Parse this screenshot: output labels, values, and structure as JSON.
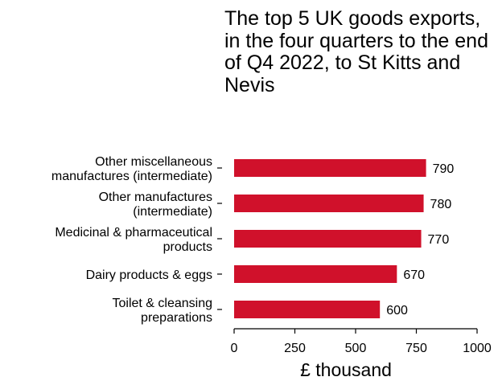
{
  "chart_data": {
    "type": "bar",
    "orientation": "horizontal",
    "title": "The top 5 UK goods exports, in the four quarters to the end of Q4 2022, to St Kitts and Nevis",
    "categories": [
      [
        "Other miscellaneous",
        "manufactures (intermediate)"
      ],
      [
        "Other manufactures",
        "(intermediate)"
      ],
      [
        "Medicinal & pharmaceutical",
        "products"
      ],
      [
        "Dairy products & eggs"
      ],
      [
        "Toilet & cleansing",
        "preparations"
      ]
    ],
    "values": [
      790,
      780,
      770,
      670,
      600
    ],
    "value_labels": [
      "790",
      "780",
      "770",
      "670",
      "600"
    ],
    "xlabel": "£ thousand",
    "ylabel": "",
    "xlim": [
      0,
      1000
    ],
    "xticks": [
      0,
      250,
      500,
      750,
      1000
    ],
    "xtick_labels": [
      "0",
      "250",
      "500",
      "750",
      "1000"
    ],
    "bar_color": "#d0112b",
    "grid": false,
    "legend": "none"
  }
}
